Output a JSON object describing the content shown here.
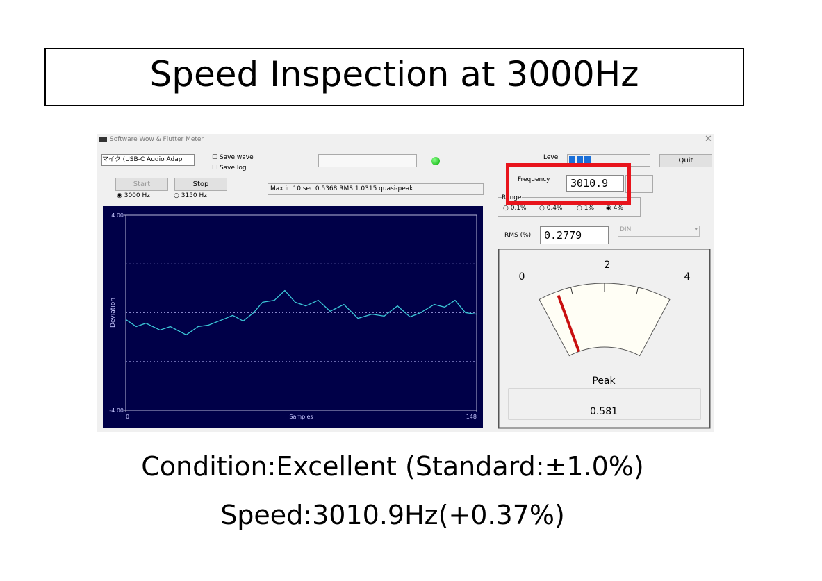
{
  "slide_title": "Speed Inspection at 3000Hz",
  "window": {
    "title": "Software Wow & Flutter Meter",
    "device": "マイク (USB-C Audio Adap",
    "checkboxes": [
      "Save wave",
      "Save log"
    ],
    "buttons": {
      "start": "Start",
      "stop": "Stop",
      "quit": "Quit"
    },
    "frequency_options": [
      "3000 Hz",
      "3150 Hz"
    ],
    "status": "Max in 10 sec 0.5368 RMS 1.0315 quasi-peak",
    "level_label": "Level",
    "frequency_label": "Frequency",
    "frequency_value": "3010.9",
    "range_label": "Range",
    "range_options": [
      "0.1%",
      "0.4%",
      "1%",
      "4%"
    ],
    "rms_label": "RMS (%)",
    "rms_value": "0.2779",
    "weighting": "DIN",
    "meter": {
      "scale_labels": [
        "0",
        "2",
        "4"
      ],
      "peak_label": "Peak",
      "peak_value": "0.581"
    },
    "chart_data": {
      "type": "line",
      "y_label": "Deviation",
      "x_label": "Samples",
      "xlim": [
        0,
        148
      ],
      "xticks": [
        0,
        148
      ],
      "ylim": [
        -4,
        4
      ],
      "yticks": [
        {
          "value": 4,
          "label": "4.00"
        },
        {
          "value": -4,
          "label": "-4.00"
        }
      ],
      "grid_values": [
        2,
        0,
        -2
      ],
      "color": "#3cc8d8",
      "x": [
        0,
        4.4,
        8.5,
        14.4,
        18.8,
        25.5,
        30.5,
        34.9,
        42.2,
        45.1,
        49.5,
        53.9,
        57.7,
        62.7,
        67.1,
        71.5,
        75.9,
        81.2,
        86.2,
        92.0,
        97.9,
        103.8,
        109.0,
        114.6,
        119.9,
        124.3,
        130.1,
        134.5,
        138.9,
        143.3,
        148
      ],
      "values": [
        -0.28,
        -0.57,
        -0.43,
        -0.71,
        -0.57,
        -0.91,
        -0.57,
        -0.51,
        -0.23,
        -0.11,
        -0.34,
        0,
        0.43,
        0.51,
        0.91,
        0.43,
        0.28,
        0.51,
        0.06,
        0.34,
        -0.23,
        -0.06,
        -0.14,
        0.28,
        -0.17,
        0,
        0.34,
        0.23,
        0.51,
        0,
        -0.06
      ]
    }
  },
  "caption": [
    "Condition:Excellent (Standard:±1.0%)",
    "Speed:3010.9Hz(+0.37%)"
  ]
}
